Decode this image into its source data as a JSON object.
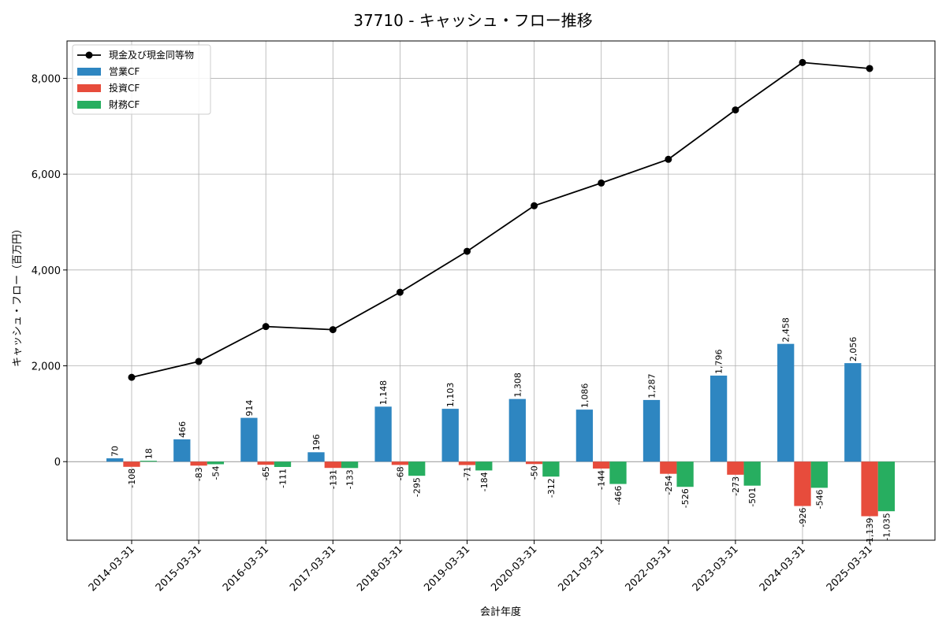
{
  "chart_data": {
    "type": "bar",
    "title": "37710 - キャッシュ・フロー推移",
    "xlabel": "会計年度",
    "ylabel": "キャッシュ・フロー（百万円）",
    "categories": [
      "2014-03-31",
      "2015-03-31",
      "2016-03-31",
      "2017-03-31",
      "2018-03-31",
      "2019-03-31",
      "2020-03-31",
      "2021-03-31",
      "2022-03-31",
      "2023-03-31",
      "2024-03-31",
      "2025-03-31"
    ],
    "ylim": [
      -1640,
      8780
    ],
    "yticks": [
      0,
      2000,
      4000,
      6000,
      8000
    ],
    "ytick_labels": [
      "0",
      "2,000",
      "4,000",
      "6,000",
      "8,000"
    ],
    "grid": true,
    "legend_position": "top-left",
    "series": [
      {
        "name": "営業CF",
        "type": "bar",
        "color": "#2e86c1",
        "values": [
          70,
          466,
          914,
          196,
          1148,
          1103,
          1308,
          1086,
          1287,
          1796,
          2458,
          2056
        ],
        "labels": [
          "70",
          "466",
          "914",
          "196",
          "1,148",
          "1,103",
          "1,308",
          "1,086",
          "1,287",
          "1,796",
          "2,458",
          "2,056"
        ]
      },
      {
        "name": "投資CF",
        "type": "bar",
        "color": "#e74c3c",
        "values": [
          -108,
          -83,
          -65,
          -131,
          -68,
          -71,
          -50,
          -144,
          -254,
          -273,
          -926,
          -1139
        ],
        "labels": [
          "-108",
          "-83",
          "-65",
          "-131",
          "-68",
          "-71",
          "-50",
          "-144",
          "-254",
          "-273",
          "-926",
          "-1,139"
        ]
      },
      {
        "name": "財務CF",
        "type": "bar",
        "color": "#27ae60",
        "values": [
          18,
          -54,
          -111,
          -133,
          -295,
          -184,
          -312,
          -466,
          -526,
          -501,
          -546,
          -1035
        ],
        "labels": [
          "18",
          "-54",
          "-111",
          "-133",
          "-295",
          "-184",
          "-312",
          "-466",
          "-526",
          "-501",
          "-546",
          "-1,035"
        ]
      },
      {
        "name": "現金及び現金同等物",
        "type": "line",
        "color": "#000000",
        "values": [
          1760,
          2090,
          2820,
          2755,
          3535,
          4390,
          5340,
          5815,
          6310,
          7340,
          8330,
          8205
        ]
      }
    ]
  }
}
